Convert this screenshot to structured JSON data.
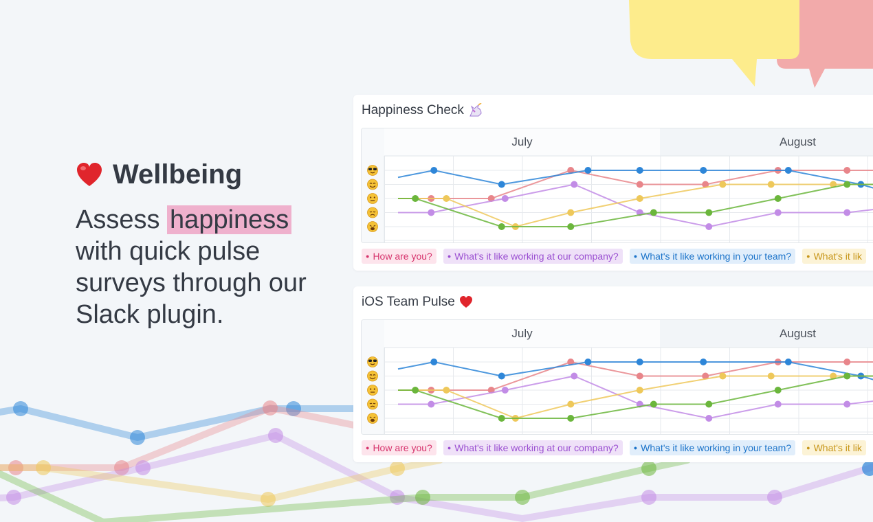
{
  "hero": {
    "icon": "red-heart-icon",
    "title": "Wellbeing",
    "body_prefix": "Assess",
    "highlight": "happiness",
    "body_rest": "with quick pulse surveys through our Slack plugin."
  },
  "colors": {
    "background": "#f3f6f9",
    "highlight": "#efb1cd",
    "bubble_yellow": "#fdec8c",
    "bubble_pink": "#f2aaaa",
    "series": {
      "how_are_you": "#e8858a",
      "company": "#c28ce6",
      "team": "#2e86d8",
      "yellow": "#eec85a",
      "green": "#6bb63c"
    }
  },
  "mood_scale": [
    "sunglasses-face-icon",
    "smiling-face-icon",
    "neutral-face-icon",
    "sad-face-icon",
    "weary-face-icon"
  ],
  "cards": [
    {
      "title": "Happiness Check",
      "title_icon": "unicorn-icon",
      "months": [
        "July",
        "August"
      ],
      "legend": [
        {
          "label": "How are you?",
          "color": "#d6336c",
          "bg": "#fde4ec"
        },
        {
          "label": "What's it like working at our company?",
          "color": "#9a4fd1",
          "bg": "#efe1f8"
        },
        {
          "label": "What's it like working in your team?",
          "color": "#1b73c9",
          "bg": "#e1eefb"
        },
        {
          "label": "What's it lik",
          "color": "#c7961a",
          "bg": "#fcf3d6"
        }
      ]
    },
    {
      "title": "iOS Team Pulse",
      "title_icon": "red-heart-icon",
      "months": [
        "July",
        "August"
      ],
      "legend": [
        {
          "label": "How are you?",
          "color": "#d6336c",
          "bg": "#fde4ec"
        },
        {
          "label": "What's it like working at our company?",
          "color": "#9a4fd1",
          "bg": "#efe1f8"
        },
        {
          "label": "What's it like working in your team?",
          "color": "#1b73c9",
          "bg": "#e1eefb"
        },
        {
          "label": "What's it lik",
          "color": "#c7961a",
          "bg": "#fcf3d6"
        }
      ]
    }
  ],
  "chart_data": [
    {
      "type": "line",
      "title": "Happiness Check",
      "y_categories": [
        "weary",
        "sad",
        "neutral",
        "smiling",
        "sunglasses"
      ],
      "x_categories": [
        "July",
        "August"
      ],
      "grid": true,
      "series": [
        {
          "name": "How are you?",
          "color": "#e8858a",
          "points": [
            [
              0,
              3
            ],
            [
              0.48,
              3
            ],
            [
              1.35,
              3
            ],
            [
              2.5,
              5
            ],
            [
              3.5,
              4
            ],
            [
              4.45,
              4
            ],
            [
              5.5,
              5
            ],
            [
              6.5,
              5
            ],
            [
              7.2,
              5
            ]
          ]
        },
        {
          "name": "What's it like working at our company?",
          "color": "#c28ce6",
          "points": [
            [
              0,
              2
            ],
            [
              0.48,
              2
            ],
            [
              1.55,
              3
            ],
            [
              2.55,
              4
            ],
            [
              3.5,
              2
            ],
            [
              4.5,
              1
            ],
            [
              5.5,
              2
            ],
            [
              6.5,
              2
            ],
            [
              7.2,
              2.4
            ]
          ]
        },
        {
          "name": "What's it like working in your team?",
          "color": "#2e86d8",
          "points": [
            [
              0,
              4.5
            ],
            [
              0.52,
              5
            ],
            [
              1.5,
              4
            ],
            [
              2.75,
              5
            ],
            [
              3.5,
              5
            ],
            [
              4.42,
              5
            ],
            [
              5.65,
              5
            ],
            [
              6.7,
              4
            ],
            [
              7.2,
              3.3
            ]
          ]
        },
        {
          "name": "What's it lik",
          "color": "#eec85a",
          "points": [
            [
              0,
              3
            ],
            [
              0.7,
              3
            ],
            [
              1.7,
              1
            ],
            [
              2.5,
              2
            ],
            [
              3.5,
              3
            ],
            [
              4.7,
              4
            ],
            [
              5.4,
              4
            ],
            [
              6.3,
              4
            ],
            [
              7.2,
              4
            ]
          ]
        },
        {
          "name": "",
          "color": "#6bb63c",
          "points": [
            [
              0,
              3
            ],
            [
              0.25,
              3
            ],
            [
              1.5,
              1
            ],
            [
              2.5,
              1
            ],
            [
              3.7,
              2
            ],
            [
              4.5,
              2
            ],
            [
              5.5,
              3
            ],
            [
              6.5,
              4
            ],
            [
              7.2,
              4
            ]
          ]
        }
      ]
    },
    {
      "type": "line",
      "title": "iOS Team Pulse",
      "y_categories": [
        "weary",
        "sad",
        "neutral",
        "smiling",
        "sunglasses"
      ],
      "x_categories": [
        "July",
        "August"
      ],
      "grid": true,
      "series": [
        {
          "name": "How are you?",
          "color": "#e8858a",
          "points": [
            [
              0,
              3
            ],
            [
              0.48,
              3
            ],
            [
              1.35,
              3
            ],
            [
              2.5,
              5
            ],
            [
              3.5,
              4
            ],
            [
              4.45,
              4
            ],
            [
              5.5,
              5
            ],
            [
              6.5,
              5
            ],
            [
              7.2,
              5
            ]
          ]
        },
        {
          "name": "What's it like working at our company?",
          "color": "#c28ce6",
          "points": [
            [
              0,
              2
            ],
            [
              0.48,
              2
            ],
            [
              1.55,
              3
            ],
            [
              2.55,
              4
            ],
            [
              3.5,
              2
            ],
            [
              4.5,
              1
            ],
            [
              5.5,
              2
            ],
            [
              6.5,
              2
            ],
            [
              7.2,
              2.4
            ]
          ]
        },
        {
          "name": "What's it like working in your team?",
          "color": "#2e86d8",
          "points": [
            [
              0,
              4.5
            ],
            [
              0.52,
              5
            ],
            [
              1.5,
              4
            ],
            [
              2.75,
              5
            ],
            [
              3.5,
              5
            ],
            [
              4.42,
              5
            ],
            [
              5.65,
              5
            ],
            [
              6.7,
              4
            ],
            [
              7.2,
              3.3
            ]
          ]
        },
        {
          "name": "What's it lik",
          "color": "#eec85a",
          "points": [
            [
              0,
              3
            ],
            [
              0.7,
              3
            ],
            [
              1.7,
              1
            ],
            [
              2.5,
              2
            ],
            [
              3.5,
              3
            ],
            [
              4.7,
              4
            ],
            [
              5.4,
              4
            ],
            [
              6.3,
              4
            ],
            [
              7.2,
              4
            ]
          ]
        },
        {
          "name": "",
          "color": "#6bb63c",
          "points": [
            [
              0,
              3
            ],
            [
              0.25,
              3
            ],
            [
              1.5,
              1
            ],
            [
              2.5,
              1
            ],
            [
              3.7,
              2
            ],
            [
              4.5,
              2
            ],
            [
              5.5,
              3
            ],
            [
              6.5,
              4
            ],
            [
              7.2,
              4
            ]
          ]
        }
      ]
    }
  ]
}
